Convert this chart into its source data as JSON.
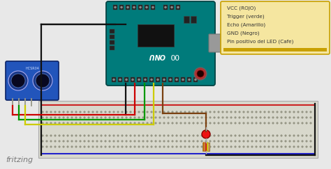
{
  "bg_color": "#e8e8e8",
  "legend_lines": [
    "VCC (ROJO)",
    "Trigger (verde)",
    "Echo (Amarillo)",
    "GND (Negro)",
    "Pin positivo del LED (Cafe)"
  ],
  "legend_bg": "#f5e6a0",
  "legend_border": "#c8a000",
  "legend_stripe": "#c8a000",
  "fritzing_text": "fritzing",
  "wire_red": "#cc0000",
  "wire_green": "#009900",
  "wire_yellow": "#cccc00",
  "wire_black": "#111111",
  "wire_brown": "#7a4010",
  "arduino_teal": "#007b7b",
  "arduino_dark": "#004444",
  "arduino_text_color": "#ffffff",
  "sensor_blue": "#2255bb",
  "sensor_dark": "#0a2266",
  "bb_color": "#d8d8cc",
  "bb_edge": "#aaaaaa",
  "bb_rail_red": "#cc2222",
  "bb_rail_blue": "#2222cc",
  "bb_hole": "#999988",
  "led_red": "#ee1111",
  "led_edge": "#880000",
  "resistor_body": "#c8a060",
  "resistor_edge": "#997733",
  "pin_dark": "#222222",
  "pin_light": "#888888",
  "black_border": "#111111",
  "usb_color": "#999999",
  "chip_color": "#111111"
}
